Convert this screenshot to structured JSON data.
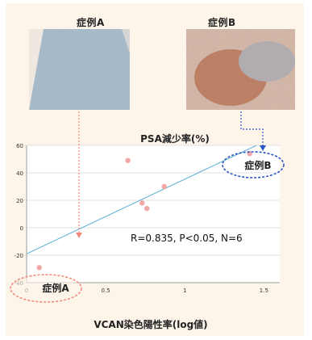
{
  "panels": [
    {
      "label": "症例A"
    },
    {
      "label": "症例B"
    }
  ],
  "colors": {
    "background": "#fdf5ea",
    "point": "#f2a7a7",
    "regression_line": "#5ab0d6",
    "case_a_marker": "#f28a7a",
    "case_b_marker": "#2d57c7",
    "stain_a": "#9fb4c2",
    "stain_b": "#b07a5e"
  },
  "chart_data": {
    "type": "scatter",
    "title": "PSA減少率(%)",
    "xlabel": "VCAN染色陽性率(log値)",
    "ylabel": "",
    "xlim": [
      0,
      1.6
    ],
    "ylim": [
      -40,
      60
    ],
    "x_ticks": [
      0,
      0.5,
      1,
      1.5
    ],
    "x_tick_labels": [
      "0",
      "0.5",
      "1",
      "1.5"
    ],
    "y_ticks": [
      -40,
      -20,
      0,
      20,
      40,
      60
    ],
    "y_tick_labels": [
      "-40",
      "-20",
      "0",
      "20",
      "40",
      "60"
    ],
    "grid": true,
    "points": [
      {
        "x": 0.08,
        "y": -29
      },
      {
        "x": 0.64,
        "y": 49
      },
      {
        "x": 0.73,
        "y": 18
      },
      {
        "x": 0.76,
        "y": 14
      },
      {
        "x": 0.87,
        "y": 30
      },
      {
        "x": 1.41,
        "y": 54
      }
    ],
    "regression": {
      "x": [
        0,
        1.6
      ],
      "y": [
        -19,
        68
      ]
    },
    "annotations": {
      "stats": "R=0.835, P<0.05, N=6",
      "case_a": "症例A",
      "case_b": "症例B"
    }
  }
}
